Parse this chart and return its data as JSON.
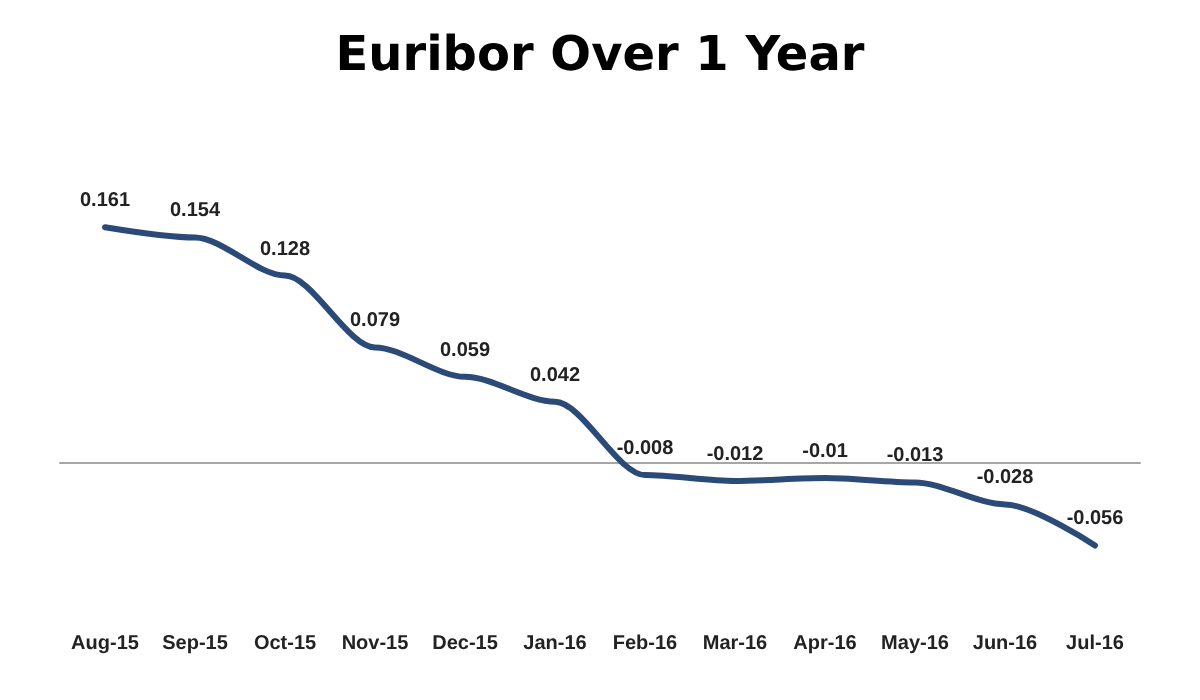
{
  "chart_data": {
    "type": "line",
    "title": "Euribor Over 1 Year",
    "categories": [
      "Aug-15",
      "Sep-15",
      "Oct-15",
      "Nov-15",
      "Dec-15",
      "Jan-16",
      "Feb-16",
      "Mar-16",
      "Apr-16",
      "May-16",
      "Jun-16",
      "Jul-16"
    ],
    "series": [
      {
        "color": "#2b4a78",
        "values": [
          0.161,
          0.154,
          0.128,
          0.079,
          0.059,
          0.042,
          -0.008,
          -0.012,
          -0.01,
          -0.013,
          -0.028,
          -0.056
        ]
      }
    ],
    "data_labels": true,
    "marker": "none",
    "line_style": "solid",
    "grid": false,
    "tick_labels": "x"
  }
}
